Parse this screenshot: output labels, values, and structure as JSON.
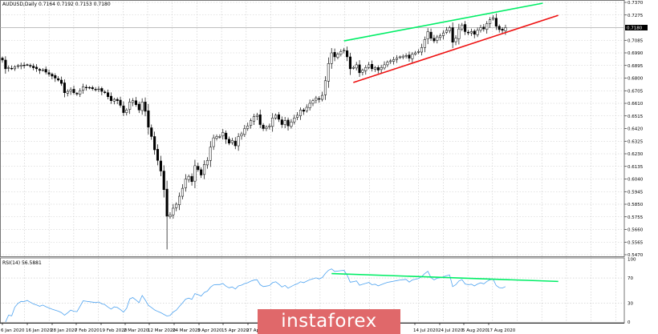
{
  "header": {
    "symbol": "AUDUSD,Daily",
    "ohlc": "0.7164 0.7192 0.7153 0.7180"
  },
  "rsi_header": "RSI(14) 56.5881",
  "logo": "instaforex",
  "colors": {
    "bull_body": "#ffffff",
    "bear_body": "#000000",
    "candle_outline": "#000000",
    "resistance_line": "#00ee66",
    "support_line": "#ee1111",
    "rsi_line": "#4ea3f0",
    "logo_bg": "#e0686a",
    "grid": "#c8c8c8"
  },
  "chart_data": [
    {
      "type": "candlestick",
      "title": "AUDUSD,Daily",
      "timeframe": "Daily",
      "x_tick_labels": [
        "6 Jan 2020",
        "16 Jan 2020",
        "28 Jan 2020",
        "7 Feb 2020",
        "19 Feb 2020",
        "2 Mar 2020",
        "12 Mar 2020",
        "24 Mar 2020",
        "3 Apr 2020",
        "15 Apr 2020",
        "27 Apr 2020",
        "14 Jul 2020",
        "24 Jul 2020",
        "5 Aug 2020",
        "17 Aug 2020"
      ],
      "y_tick_labels": [
        "0.7370",
        "0.7275",
        "0.7085",
        "0.6990",
        "0.6895",
        "0.6800",
        "0.6705",
        "0.6610",
        "0.6515",
        "0.6420",
        "0.6325",
        "0.6230",
        "0.6135",
        "0.6040",
        "0.5945",
        "0.5850",
        "0.5755",
        "0.5660",
        "0.5565",
        "0.5470"
      ],
      "ylim": [
        0.547,
        0.737
      ],
      "current_price": "0.7180",
      "grid": true,
      "closes": [
        0.6936,
        0.687,
        0.6878,
        0.687,
        0.6885,
        0.6893,
        0.6898,
        0.6897,
        0.69,
        0.689,
        0.6878,
        0.687,
        0.6858,
        0.6862,
        0.6845,
        0.683,
        0.6815,
        0.68,
        0.6785,
        0.676,
        0.669,
        0.67,
        0.6712,
        0.669,
        0.668,
        0.6705,
        0.6735,
        0.673,
        0.6725,
        0.672,
        0.6715,
        0.6718,
        0.67,
        0.669,
        0.666,
        0.663,
        0.664,
        0.663,
        0.6595,
        0.654,
        0.656,
        0.662,
        0.663,
        0.66,
        0.656,
        0.662,
        0.655,
        0.643,
        0.636,
        0.626,
        0.618,
        0.61,
        0.596,
        0.576,
        0.577,
        0.582,
        0.585,
        0.591,
        0.597,
        0.604,
        0.606,
        0.602,
        0.614,
        0.611,
        0.607,
        0.615,
        0.618,
        0.628,
        0.635,
        0.636,
        0.636,
        0.639,
        0.634,
        0.631,
        0.633,
        0.629,
        0.636,
        0.638,
        0.642,
        0.644,
        0.648,
        0.651,
        0.652,
        0.645,
        0.642,
        0.643,
        0.644,
        0.65,
        0.652,
        0.649,
        0.645,
        0.648,
        0.644,
        0.647,
        0.65,
        0.652,
        0.656,
        0.655,
        0.658,
        0.661,
        0.663,
        0.665,
        0.664,
        0.667,
        0.678,
        0.691,
        0.699,
        0.696,
        0.698,
        0.7,
        0.701,
        0.696,
        0.687,
        0.688,
        0.69,
        0.684,
        0.686,
        0.688,
        0.69,
        0.687,
        0.688,
        0.686,
        0.688,
        0.69,
        0.692,
        0.693,
        0.694,
        0.695,
        0.696,
        0.6965,
        0.697,
        0.695,
        0.698,
        0.699,
        0.7,
        0.703,
        0.709,
        0.715,
        0.71,
        0.708,
        0.711,
        0.712,
        0.714,
        0.716,
        0.718,
        0.707,
        0.71,
        0.717,
        0.72,
        0.715,
        0.714,
        0.715,
        0.713,
        0.716,
        0.718,
        0.717,
        0.721,
        0.724,
        0.7255,
        0.719,
        0.7165,
        0.716,
        0.718
      ],
      "crash_low": 0.551,
      "trendlines": [
        {
          "role": "resistance",
          "color": "#00ee66",
          "from": {
            "bar": 110,
            "price": 0.708
          },
          "to": {
            "bar": 174,
            "price": 0.7364
          }
        },
        {
          "role": "support",
          "color": "#ee1111",
          "from": {
            "bar": 113,
            "price": 0.6767
          },
          "to": {
            "bar": 179,
            "price": 0.7273
          }
        }
      ]
    },
    {
      "type": "line",
      "title": "RSI(14) 56.5881",
      "indicator": "RSI",
      "period": 14,
      "last_value": 56.5881,
      "ylim": [
        0,
        100
      ],
      "y_tick_labels": [
        "100",
        "70",
        "30",
        "0"
      ],
      "trendlines": [
        {
          "role": "divergence",
          "color": "#00ee66",
          "from": {
            "bar": 106,
            "value": 77
          },
          "to": {
            "bar": 179,
            "value": 64.5
          }
        }
      ]
    }
  ]
}
